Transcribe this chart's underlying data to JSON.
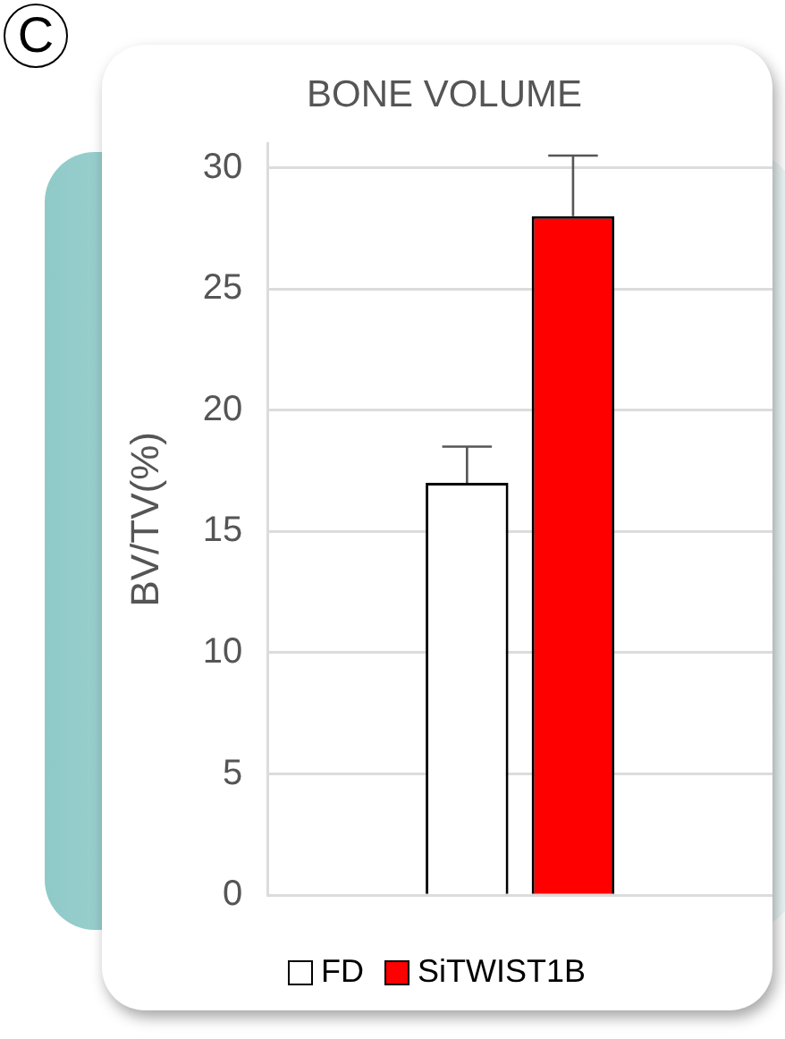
{
  "chart_data": {
    "type": "bar",
    "title": "BONE VOLUME",
    "ylabel": "BV/TV(%)",
    "annotations": [
      "C"
    ],
    "categories": [
      null
    ],
    "series": [
      {
        "name": "FD",
        "color": "#ffffff",
        "values": [
          17
        ],
        "errors": [
          [
            17,
            18.5
          ]
        ]
      },
      {
        "name": "SiTWIST1B",
        "color": "#ff0000",
        "values": [
          28
        ],
        "errors": [
          [
            28,
            30.5
          ]
        ]
      }
    ],
    "ylim": [
      0,
      31
    ],
    "yticks": [
      0,
      5,
      10,
      15,
      20,
      25,
      30
    ],
    "grid": "y",
    "legend": "bottom"
  }
}
